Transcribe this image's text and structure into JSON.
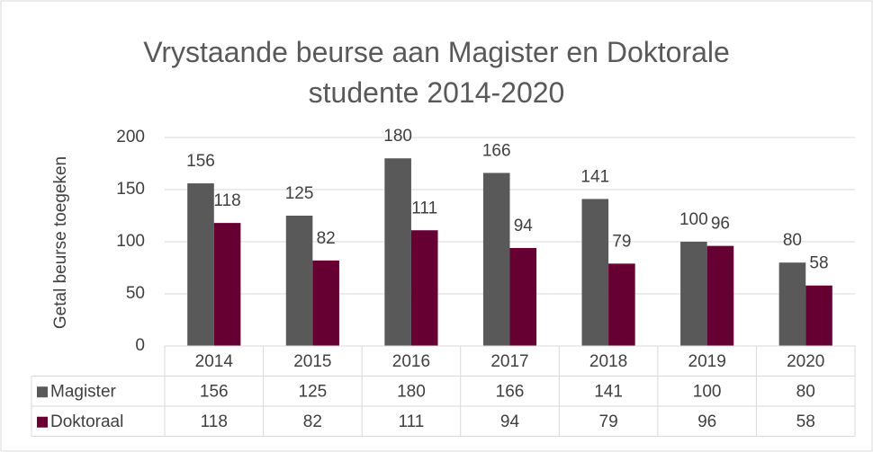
{
  "chart_data": {
    "type": "bar",
    "title": "Vrystaande beurse aan Magister en Doktorale studente 2014-2020",
    "y_label": "Getal beurse toegeken",
    "categories": [
      "2014",
      "2015",
      "2016",
      "2017",
      "2018",
      "2019",
      "2020"
    ],
    "series": [
      {
        "name": "Magister",
        "color": "#595959",
        "values": [
          156,
          125,
          180,
          166,
          141,
          100,
          80
        ]
      },
      {
        "name": "Doktoraal",
        "color": "#660033",
        "values": [
          118,
          82,
          111,
          94,
          79,
          96,
          58
        ]
      }
    ],
    "ylim": [
      0,
      200
    ],
    "yticks": [
      0,
      50,
      100,
      150,
      200
    ],
    "grid": true,
    "data_table": true
  }
}
